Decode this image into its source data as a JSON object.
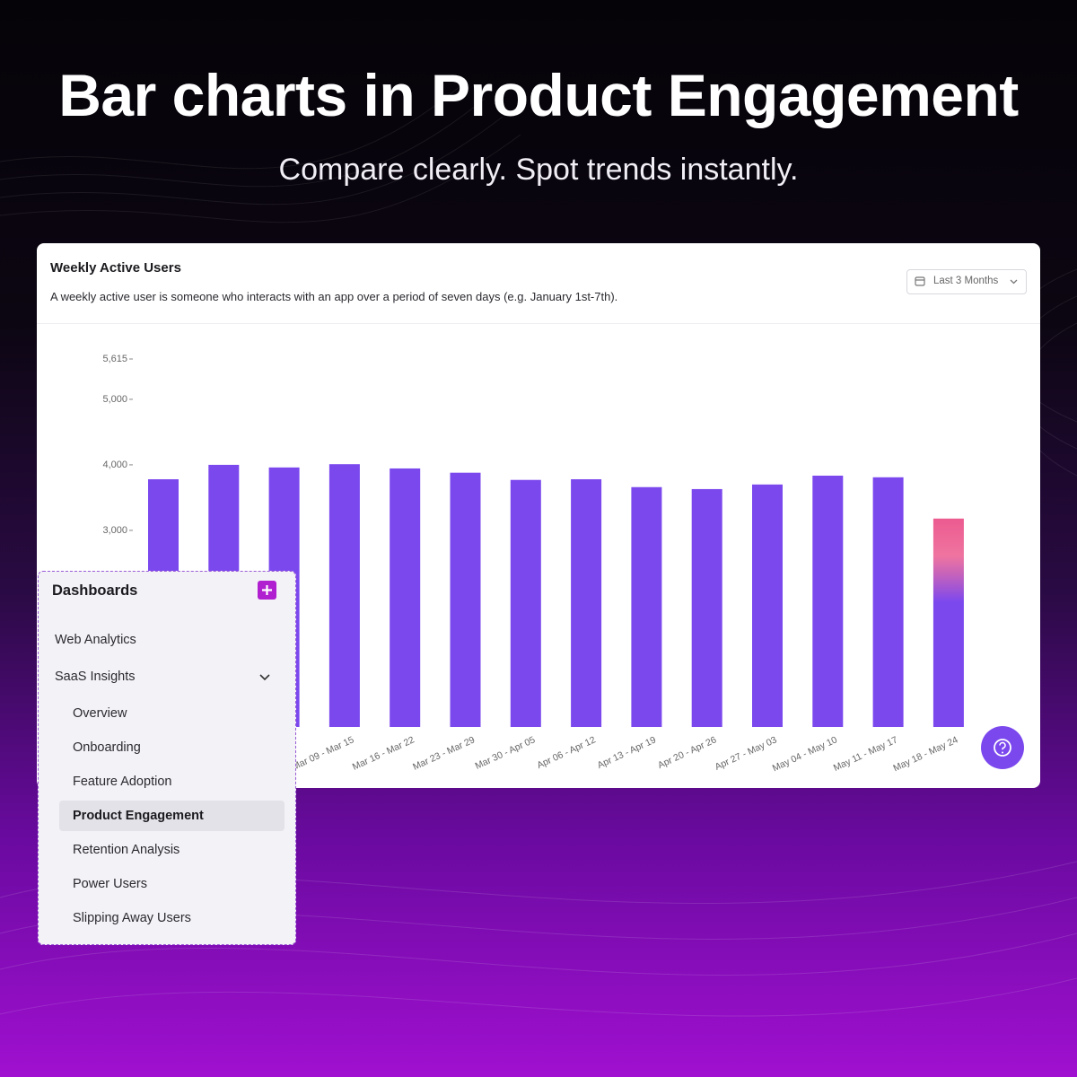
{
  "header": {
    "title": "Bar charts in Product Engagement",
    "subtitle": "Compare clearly. Spot trends instantly."
  },
  "card": {
    "title": "Weekly Active Users",
    "description": "A weekly active user is someone who interacts with an app over a period of seven days (e.g. January 1st-7th).",
    "range_button": "Last 3 Months"
  },
  "chart_data": {
    "type": "bar",
    "categories": [
      null,
      null,
      null,
      "Mar 09 - Mar 15",
      "Mar 16 - Mar 22",
      "Mar 23 - Mar 29",
      "Mar 30 - Apr 05",
      "Apr 06 - Apr 12",
      "Apr 13 - Apr 19",
      "Apr 20 - Apr 26",
      "Apr 27 - May 03",
      "May 04 - May 10",
      "May 11 - May 17",
      "May 18 - May 24"
    ],
    "values": [
      3780,
      4000,
      3960,
      4010,
      3945,
      3880,
      3770,
      3780,
      3660,
      3630,
      3700,
      3835,
      3810,
      3180
    ],
    "color": "#7b48ee",
    "last_bar_color": "#ec5b8f",
    "ylim": [
      0,
      5615
    ],
    "yticks": [
      {
        "value": 3000,
        "label": "3,000"
      },
      {
        "value": 4000,
        "label": "4,000"
      },
      {
        "value": 5000,
        "label": "5,000"
      },
      {
        "value": 5615,
        "label": "5,615"
      }
    ],
    "grid": false
  },
  "sidebar": {
    "title": "Dashboards",
    "items": [
      "Web Analytics",
      "SaaS Insights"
    ],
    "subitems": [
      "Overview",
      "Onboarding",
      "Feature Adoption",
      "Product Engagement",
      "Retention Analysis",
      "Power Users",
      "Slipping Away Users"
    ],
    "selected": "Product Engagement"
  }
}
